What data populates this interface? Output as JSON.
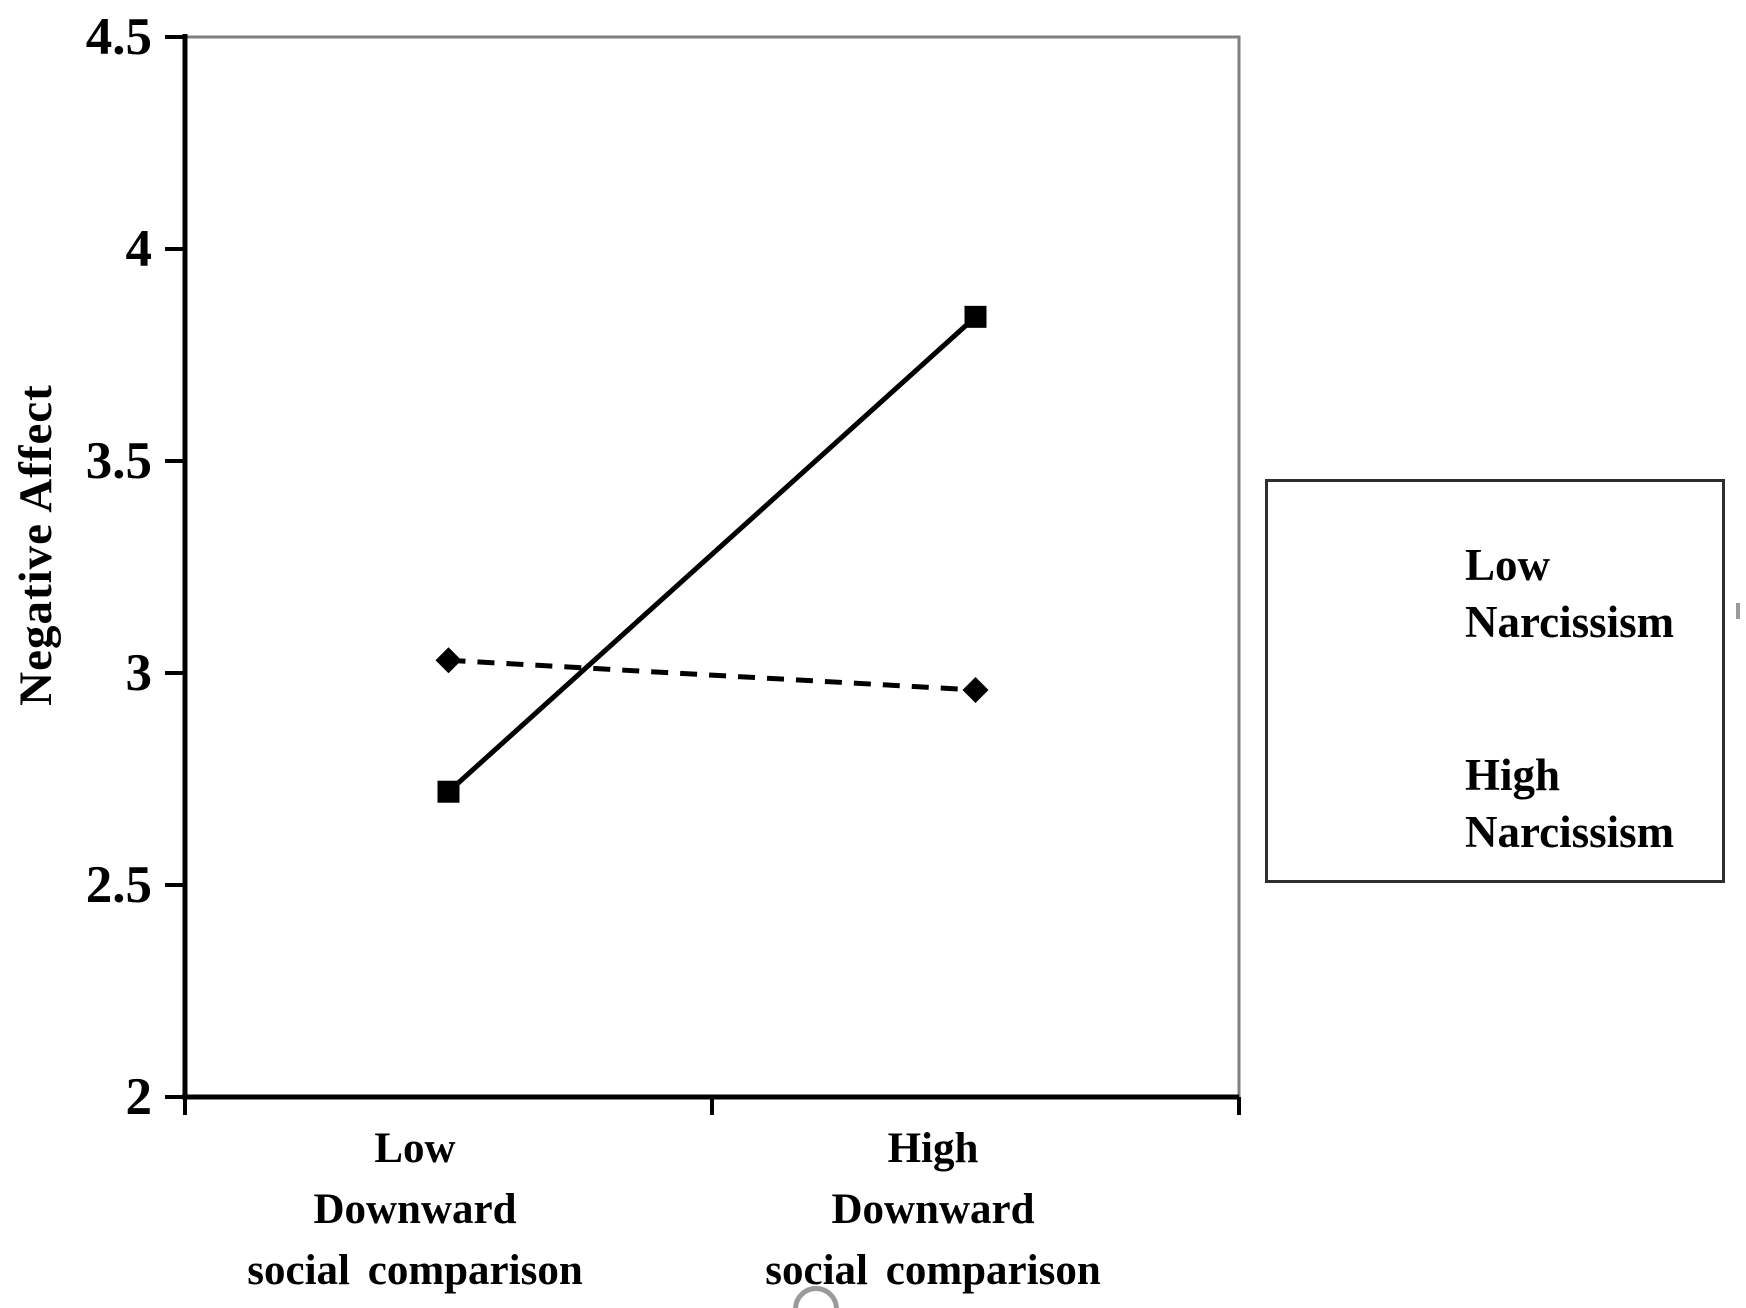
{
  "chart_data": {
    "type": "line",
    "title": "",
    "ylabel": "Negative Affect",
    "xlabel": "",
    "categories": [
      "Low Downward social comparison",
      "High Downward social comparison"
    ],
    "series": [
      {
        "name": "Low Narcissism",
        "values": [
          3.03,
          2.96
        ],
        "line_style": "dashed",
        "marker": "diamond",
        "color": "#000000"
      },
      {
        "name": "High Narcissism",
        "values": [
          2.72,
          3.84
        ],
        "line_style": "solid",
        "marker": "square",
        "color": "#000000"
      }
    ],
    "ylim": [
      2,
      4.5
    ],
    "y_ticks": [
      4.5,
      4,
      3.5,
      3,
      2.5,
      2
    ],
    "y_tick_labels": [
      "4.5",
      "4",
      "3.5",
      "3",
      "2.5",
      "2"
    ],
    "grid": false,
    "legend_position": "right"
  },
  "x_axis": {
    "cat1": {
      "line1": "Low",
      "line2": "Downward",
      "line3": "social comparison"
    },
    "cat2": {
      "line1": "High",
      "line2": "Downward",
      "line3": "social comparison"
    }
  },
  "legend": {
    "entry1": {
      "line1": "Low",
      "line2": "Narcissism"
    },
    "entry2": {
      "line1": "High",
      "line2": "Narcissism"
    }
  },
  "colors": {
    "axis": "#000000",
    "plot_border": "#7f7f7f",
    "text": "#000000"
  }
}
